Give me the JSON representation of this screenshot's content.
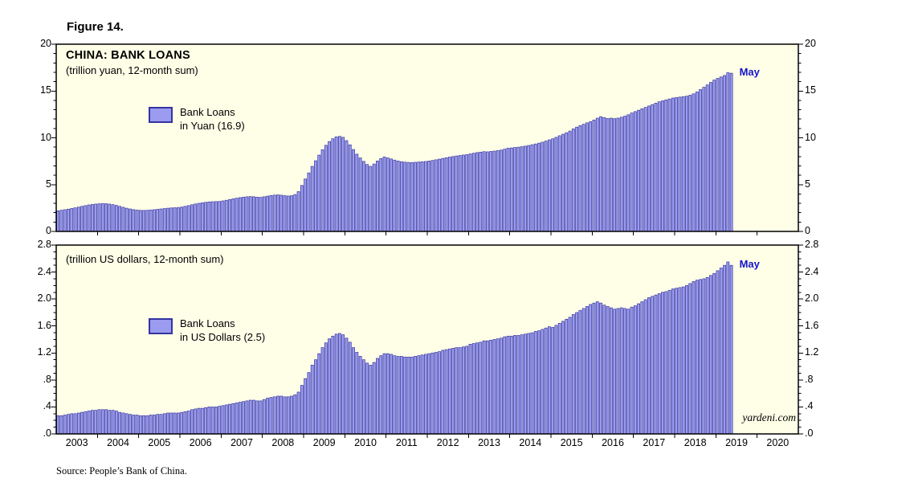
{
  "figure_label": "Figure 14.",
  "source_note": "Source: People’s Bank of China.",
  "watermark": "yardeni.com",
  "colors": {
    "panel_bg": "#FFFFE8",
    "bar_fill": "#9B9BEF",
    "bar_stroke": "#3434A2",
    "annotation": "#1212CC",
    "axis": "#000000"
  },
  "x_axis": {
    "start_year": 2003,
    "end_year": 2020,
    "year_labels": [
      "2003",
      "2004",
      "2005",
      "2006",
      "2007",
      "2008",
      "2009",
      "2010",
      "2011",
      "2012",
      "2013",
      "2014",
      "2015",
      "2016",
      "2017",
      "2018",
      "2019",
      "2020"
    ]
  },
  "chart_data": [
    {
      "type": "bar",
      "panel": "yuan",
      "title": "CHINA: BANK LOANS",
      "subtitle": "(trillion yuan, 12-month sum)",
      "legend_lines": [
        "Bank Loans",
        "in Yuan (16.9)"
      ],
      "annotation_label": "May",
      "x_monthly_start": "2003-01",
      "x_monthly_end": "2019-05",
      "ylim": [
        0,
        20
      ],
      "ytick_values": [
        0,
        5,
        10,
        15,
        20
      ],
      "ytick_labels": [
        "0",
        "5",
        "10",
        "15",
        "20"
      ],
      "minor_tick_step": 1,
      "values": [
        2.2,
        2.26,
        2.32,
        2.38,
        2.45,
        2.52,
        2.6,
        2.68,
        2.76,
        2.83,
        2.88,
        2.92,
        2.95,
        2.97,
        2.96,
        2.92,
        2.86,
        2.78,
        2.68,
        2.58,
        2.48,
        2.4,
        2.33,
        2.28,
        2.25,
        2.24,
        2.26,
        2.29,
        2.32,
        2.36,
        2.4,
        2.44,
        2.48,
        2.51,
        2.53,
        2.54,
        2.6,
        2.68,
        2.76,
        2.85,
        2.93,
        3.0,
        3.06,
        3.11,
        3.15,
        3.17,
        3.19,
        3.2,
        3.26,
        3.33,
        3.41,
        3.48,
        3.55,
        3.61,
        3.66,
        3.7,
        3.72,
        3.7,
        3.66,
        3.64,
        3.7,
        3.77,
        3.83,
        3.88,
        3.9,
        3.87,
        3.82,
        3.78,
        3.82,
        3.94,
        4.25,
        4.91,
        5.6,
        6.25,
        6.95,
        7.55,
        8.15,
        8.72,
        9.2,
        9.6,
        9.9,
        10.1,
        10.15,
        10.05,
        9.7,
        9.25,
        8.75,
        8.25,
        7.85,
        7.48,
        7.15,
        6.95,
        7.2,
        7.52,
        7.78,
        7.95,
        7.85,
        7.74,
        7.62,
        7.52,
        7.45,
        7.4,
        7.37,
        7.36,
        7.38,
        7.41,
        7.44,
        7.47,
        7.52,
        7.58,
        7.65,
        7.72,
        7.8,
        7.87,
        7.94,
        8.0,
        8.06,
        8.11,
        8.16,
        8.2,
        8.28,
        8.35,
        8.42,
        8.47,
        8.52,
        8.5,
        8.54,
        8.58,
        8.63,
        8.69,
        8.79,
        8.89,
        8.92,
        8.96,
        9.0,
        9.05,
        9.11,
        9.18,
        9.26,
        9.34,
        9.43,
        9.53,
        9.65,
        9.78,
        9.9,
        10.05,
        10.22,
        10.38,
        10.54,
        10.72,
        10.95,
        11.14,
        11.3,
        11.45,
        11.6,
        11.72,
        11.9,
        12.1,
        12.26,
        12.16,
        12.06,
        12.1,
        12.05,
        12.1,
        12.2,
        12.31,
        12.46,
        12.65,
        12.8,
        12.95,
        13.1,
        13.25,
        13.4,
        13.55,
        13.7,
        13.85,
        13.95,
        14.05,
        14.15,
        14.25,
        14.3,
        14.35,
        14.4,
        14.45,
        14.55,
        14.7,
        14.9,
        15.15,
        15.4,
        15.65,
        15.92,
        16.17,
        16.35,
        16.5,
        16.66,
        16.95,
        16.9
      ]
    },
    {
      "type": "bar",
      "panel": "us_dollars",
      "title": "",
      "subtitle": "(trillion US dollars, 12-month sum)",
      "legend_lines": [
        "Bank Loans",
        "in US Dollars (2.5)"
      ],
      "annotation_label": "May",
      "x_monthly_start": "2003-01",
      "x_monthly_end": "2019-05",
      "ylim": [
        0,
        2.8
      ],
      "ytick_values": [
        0,
        0.4,
        0.8,
        1.2,
        1.6,
        2.0,
        2.4,
        2.8
      ],
      "ytick_labels": [
        ".0",
        ".4",
        ".8",
        "1.2",
        "1.6",
        "2.0",
        "2.4",
        "2.8"
      ],
      "minor_tick_step": 0.1,
      "values": [
        0.27,
        0.27,
        0.28,
        0.29,
        0.3,
        0.3,
        0.31,
        0.32,
        0.33,
        0.34,
        0.35,
        0.35,
        0.36,
        0.36,
        0.36,
        0.35,
        0.35,
        0.34,
        0.32,
        0.31,
        0.3,
        0.29,
        0.28,
        0.28,
        0.27,
        0.27,
        0.27,
        0.28,
        0.28,
        0.29,
        0.29,
        0.3,
        0.31,
        0.31,
        0.31,
        0.31,
        0.32,
        0.33,
        0.34,
        0.36,
        0.37,
        0.38,
        0.38,
        0.39,
        0.4,
        0.4,
        0.4,
        0.41,
        0.42,
        0.43,
        0.44,
        0.45,
        0.46,
        0.47,
        0.48,
        0.49,
        0.5,
        0.5,
        0.49,
        0.49,
        0.51,
        0.53,
        0.54,
        0.55,
        0.56,
        0.56,
        0.55,
        0.55,
        0.56,
        0.58,
        0.62,
        0.72,
        0.82,
        0.91,
        1.02,
        1.1,
        1.19,
        1.28,
        1.35,
        1.41,
        1.45,
        1.48,
        1.49,
        1.47,
        1.42,
        1.36,
        1.28,
        1.21,
        1.15,
        1.1,
        1.05,
        1.02,
        1.06,
        1.12,
        1.16,
        1.19,
        1.19,
        1.18,
        1.16,
        1.15,
        1.15,
        1.14,
        1.14,
        1.14,
        1.15,
        1.16,
        1.17,
        1.18,
        1.19,
        1.2,
        1.21,
        1.22,
        1.24,
        1.25,
        1.26,
        1.27,
        1.28,
        1.28,
        1.29,
        1.3,
        1.33,
        1.34,
        1.35,
        1.36,
        1.38,
        1.38,
        1.39,
        1.4,
        1.41,
        1.42,
        1.44,
        1.45,
        1.45,
        1.46,
        1.46,
        1.47,
        1.48,
        1.49,
        1.5,
        1.52,
        1.53,
        1.55,
        1.57,
        1.59,
        1.58,
        1.61,
        1.64,
        1.67,
        1.7,
        1.73,
        1.77,
        1.8,
        1.83,
        1.86,
        1.89,
        1.92,
        1.94,
        1.96,
        1.94,
        1.91,
        1.89,
        1.87,
        1.85,
        1.86,
        1.87,
        1.86,
        1.85,
        1.88,
        1.9,
        1.93,
        1.96,
        1.99,
        2.02,
        2.04,
        2.06,
        2.08,
        2.1,
        2.11,
        2.13,
        2.15,
        2.16,
        2.17,
        2.18,
        2.2,
        2.23,
        2.26,
        2.28,
        2.29,
        2.3,
        2.32,
        2.35,
        2.38,
        2.42,
        2.46,
        2.5,
        2.55,
        2.5
      ]
    }
  ]
}
